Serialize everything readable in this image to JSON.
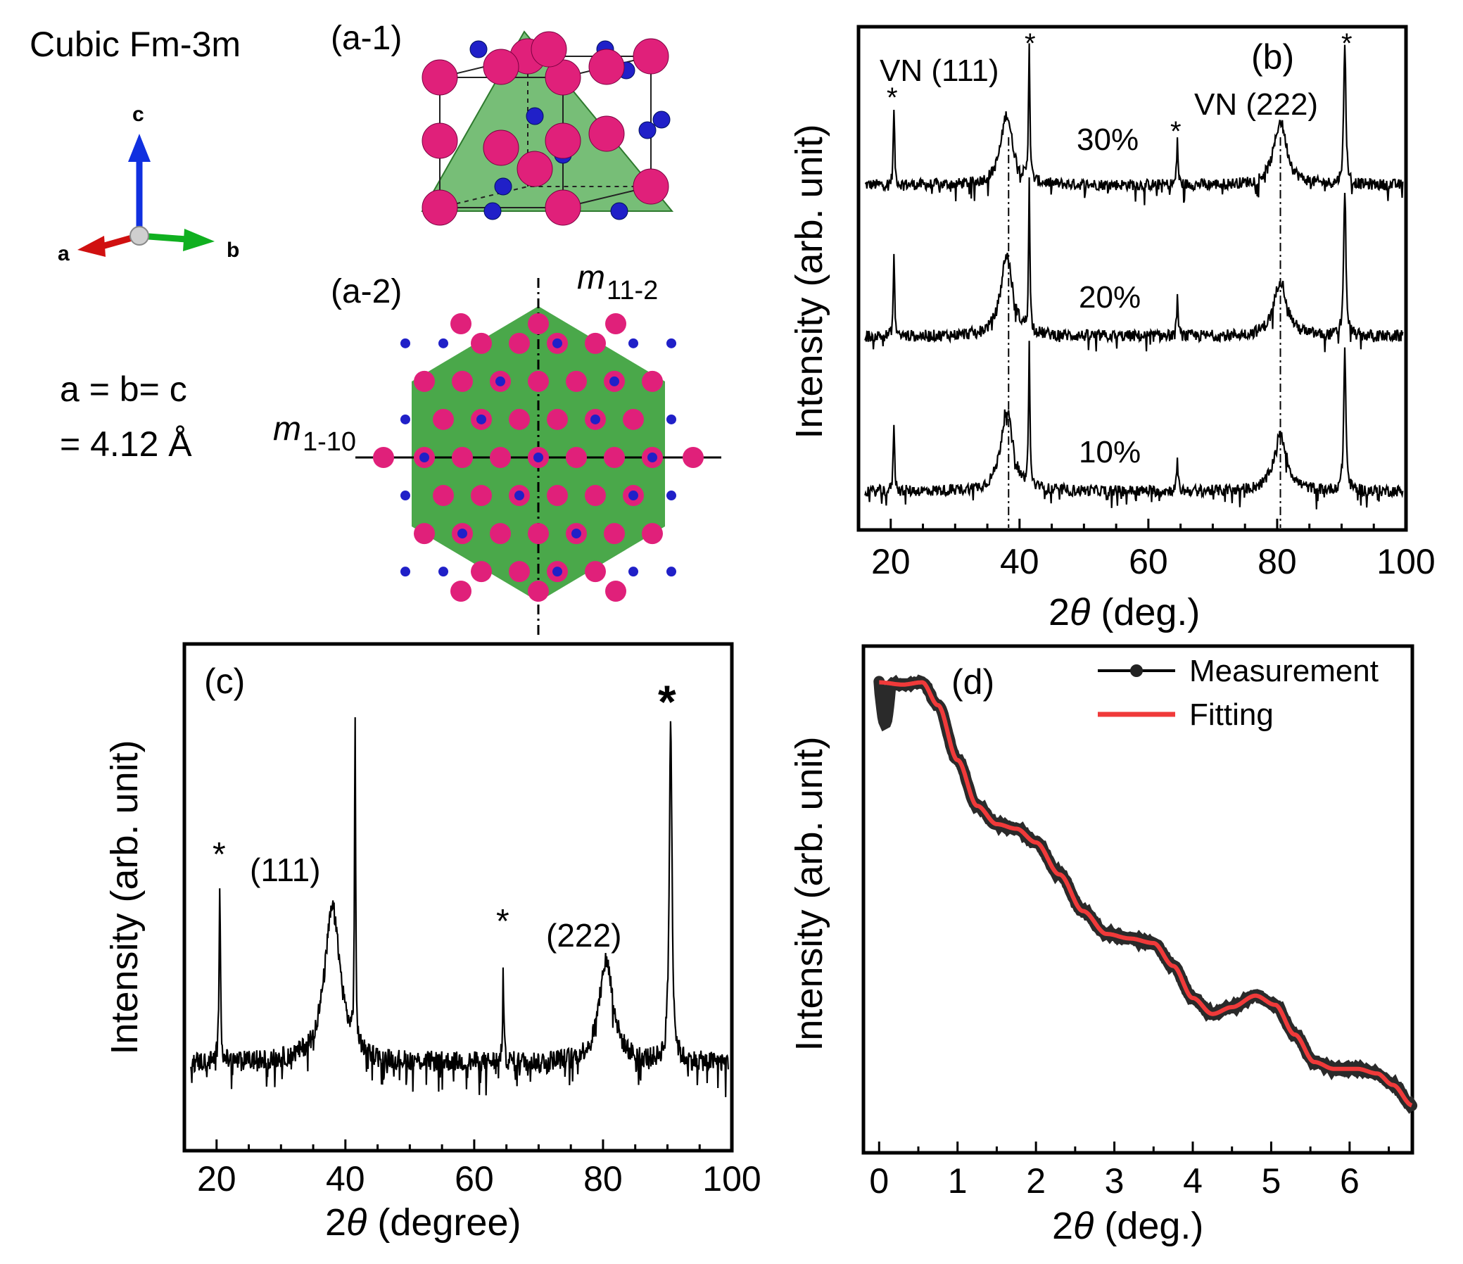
{
  "panel_a": {
    "system": "Cubic Fm-3m",
    "label_a1": "(a-1)",
    "label_a2": "(a-2)",
    "axis_c": "c",
    "axis_a": "a",
    "axis_b": "b",
    "lattice_line1": "a = b= c",
    "lattice_line2": "= 4.12 Å",
    "mirror1_base": "m",
    "mirror1_sub": "11-2",
    "mirror2_base": "m",
    "mirror2_sub": "1-10",
    "colors": {
      "large_atom": "#e0207a",
      "small_atom": "#2020c8",
      "plane": "#4aa84a",
      "axis_c": "#1030e0",
      "axis_a": "#d01010",
      "axis_b": "#10b020"
    }
  },
  "chart_data": [
    {
      "id": "b",
      "type": "line",
      "panel_label": "(b)",
      "xlabel": "2θ (deg.)",
      "xlabel_theta": "θ",
      "xlabel_rest": " (deg.)",
      "ylabel": "Intensity (arb. unit)",
      "xlim": [
        15,
        100
      ],
      "xticks": [
        20,
        40,
        60,
        80,
        100
      ],
      "series": [
        {
          "name": "30%",
          "peaks": [
            {
              "x": 20.5,
              "h": 0.55,
              "w": 0.12
            },
            {
              "x": 38.0,
              "h": 0.5,
              "w": 1.1
            },
            {
              "x": 41.5,
              "h": 1.0,
              "w": 0.12
            },
            {
              "x": 64.5,
              "h": 0.33,
              "w": 0.12
            },
            {
              "x": 80.5,
              "h": 0.45,
              "w": 1.2
            },
            {
              "x": 90.5,
              "h": 1.0,
              "w": 0.2
            }
          ]
        },
        {
          "name": "20%",
          "peaks": [
            {
              "x": 20.5,
              "h": 0.55,
              "w": 0.12
            },
            {
              "x": 38.0,
              "h": 0.55,
              "w": 1.1
            },
            {
              "x": 41.5,
              "h": 1.0,
              "w": 0.12
            },
            {
              "x": 64.5,
              "h": 0.28,
              "w": 0.12
            },
            {
              "x": 80.5,
              "h": 0.38,
              "w": 1.2
            },
            {
              "x": 90.5,
              "h": 1.0,
              "w": 0.2
            }
          ]
        },
        {
          "name": "10%",
          "peaks": [
            {
              "x": 20.5,
              "h": 0.5,
              "w": 0.12
            },
            {
              "x": 38.0,
              "h": 0.58,
              "w": 1.1
            },
            {
              "x": 41.5,
              "h": 1.0,
              "w": 0.12
            },
            {
              "x": 64.5,
              "h": 0.25,
              "w": 0.12
            },
            {
              "x": 80.5,
              "h": 0.4,
              "w": 1.2
            },
            {
              "x": 90.5,
              "h": 1.0,
              "w": 0.2
            }
          ]
        }
      ],
      "series_labels": [
        "30%",
        "20%",
        "10%"
      ],
      "annotations": {
        "vn111": "VN (111)",
        "vn222": "VN (222)",
        "star": "*"
      },
      "reference_lines_x": [
        38.3,
        80.5
      ]
    },
    {
      "id": "c",
      "type": "line",
      "panel_label": "(c)",
      "xlabel": "2θ (degree)",
      "xlabel_theta": "θ",
      "xlabel_rest": " (degree)",
      "ylabel": "Intensity (arb. unit)",
      "xlim": [
        15,
        100
      ],
      "xticks": [
        20,
        40,
        60,
        80,
        100
      ],
      "peaks": [
        {
          "x": 20.5,
          "h": 0.55,
          "w": 0.12
        },
        {
          "x": 38.0,
          "h": 0.45,
          "w": 1.5
        },
        {
          "x": 41.5,
          "h": 0.95,
          "w": 0.1
        },
        {
          "x": 64.5,
          "h": 0.28,
          "w": 0.1
        },
        {
          "x": 80.5,
          "h": 0.3,
          "w": 1.3
        },
        {
          "x": 90.5,
          "h": 1.0,
          "w": 0.25
        }
      ],
      "annotations": {
        "p111": "(111)",
        "p222": "(222)",
        "star": "*"
      }
    },
    {
      "id": "d",
      "type": "line",
      "panel_label": "(d)",
      "xlabel": "2θ (deg.)",
      "xlabel_theta": "θ",
      "xlabel_rest": " (deg.)",
      "ylabel": "Intensity (arb. unit)",
      "xlim": [
        -0.2,
        6.8
      ],
      "xticks": [
        0,
        1,
        2,
        3,
        4,
        5,
        6
      ],
      "legend": [
        "Measurement",
        "Fitting"
      ],
      "legend_position": "top-right",
      "fit_points": [
        [
          0.0,
          0.97
        ],
        [
          0.3,
          0.965
        ],
        [
          0.55,
          0.97
        ],
        [
          0.75,
          0.92
        ],
        [
          1.0,
          0.8
        ],
        [
          1.25,
          0.7
        ],
        [
          1.5,
          0.66
        ],
        [
          1.75,
          0.65
        ],
        [
          2.0,
          0.62
        ],
        [
          2.3,
          0.55
        ],
        [
          2.6,
          0.47
        ],
        [
          2.9,
          0.42
        ],
        [
          3.2,
          0.41
        ],
        [
          3.5,
          0.4
        ],
        [
          3.75,
          0.35
        ],
        [
          4.0,
          0.28
        ],
        [
          4.25,
          0.245
        ],
        [
          4.5,
          0.26
        ],
        [
          4.8,
          0.285
        ],
        [
          5.05,
          0.265
        ],
        [
          5.3,
          0.2
        ],
        [
          5.55,
          0.14
        ],
        [
          5.8,
          0.125
        ],
        [
          6.1,
          0.125
        ],
        [
          6.35,
          0.115
        ],
        [
          6.55,
          0.09
        ],
        [
          6.8,
          0.045
        ]
      ]
    }
  ]
}
